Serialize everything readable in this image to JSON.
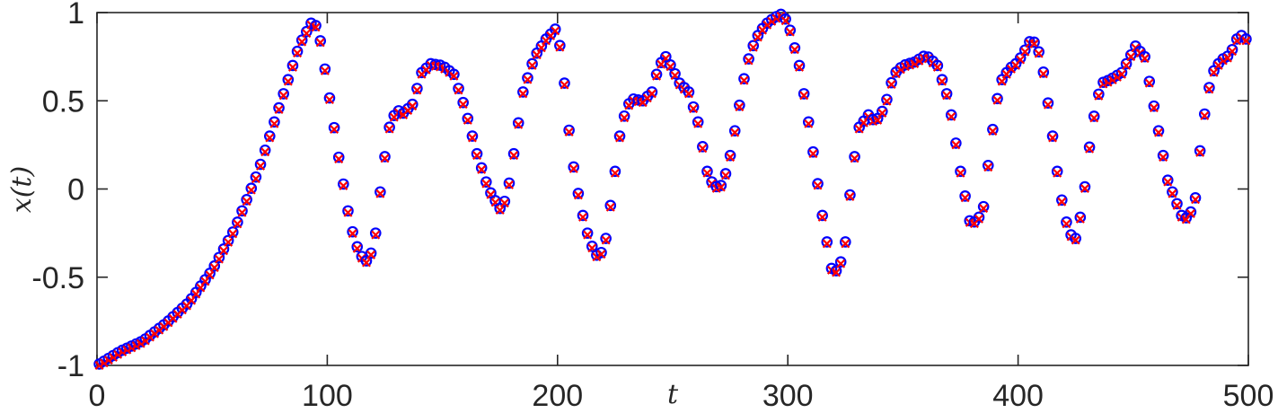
{
  "chart_data": {
    "type": "scatter",
    "title": "",
    "xlabel": "t",
    "ylabel": "x(t)",
    "xlim": [
      0,
      500
    ],
    "ylim": [
      -1,
      1
    ],
    "xticks": [
      0,
      100,
      200,
      300,
      400,
      500
    ],
    "xtick_labels": [
      "0",
      "100",
      "200",
      "300",
      "400",
      "500"
    ],
    "yticks": [
      -1,
      -0.5,
      0,
      0.5,
      1
    ],
    "ytick_labels": [
      "-1",
      "-0.5",
      "0",
      "0.5",
      "1"
    ],
    "grid": false,
    "legend": "none",
    "sample_step": 2,
    "series": [
      {
        "marker": "circle",
        "color": "#0000ff",
        "offset": 0
      },
      {
        "marker": "cross",
        "color": "#ff0000",
        "offset": -0.01
      }
    ],
    "curve_knots": {
      "t": [
        0,
        10,
        20,
        30,
        40,
        50,
        60,
        70,
        80,
        88,
        93,
        96,
        100,
        105,
        110,
        114,
        118,
        121,
        124,
        127,
        130,
        133,
        137,
        141,
        145,
        150,
        155,
        160,
        165,
        170,
        175,
        178,
        181,
        185,
        190,
        195,
        200,
        203,
        206,
        210,
        214,
        218,
        221,
        224,
        227,
        230,
        233,
        237,
        241,
        244,
        247,
        250,
        253,
        257,
        261,
        265,
        268,
        271,
        274,
        278,
        282,
        286,
        290,
        294,
        297,
        300,
        305,
        310,
        315,
        319,
        322,
        325,
        328,
        331,
        335,
        338,
        342,
        346,
        350,
        355,
        360,
        365,
        370,
        375,
        379,
        382,
        385,
        388,
        392,
        396,
        400,
        404,
        406,
        410,
        414,
        418,
        422,
        425,
        428,
        432,
        436,
        440,
        445,
        451,
        455,
        460,
        465,
        471,
        474,
        477,
        480,
        484,
        488,
        492,
        496,
        500
      ],
      "x": [
        -1.0,
        -0.92,
        -0.86,
        -0.76,
        -0.64,
        -0.46,
        -0.22,
        0.1,
        0.5,
        0.82,
        0.94,
        0.92,
        0.6,
        0.18,
        -0.2,
        -0.37,
        -0.42,
        -0.25,
        0.1,
        0.35,
        0.45,
        0.43,
        0.48,
        0.66,
        0.71,
        0.7,
        0.65,
        0.45,
        0.2,
        0.0,
        -0.11,
        -0.05,
        0.2,
        0.55,
        0.75,
        0.85,
        0.92,
        0.6,
        0.2,
        -0.1,
        -0.3,
        -0.4,
        -0.28,
        0.0,
        0.3,
        0.47,
        0.51,
        0.5,
        0.55,
        0.7,
        0.75,
        0.68,
        0.6,
        0.55,
        0.38,
        0.1,
        0.01,
        0.02,
        0.12,
        0.4,
        0.7,
        0.85,
        0.93,
        0.97,
        0.99,
        0.95,
        0.7,
        0.3,
        -0.15,
        -0.45,
        -0.47,
        -0.3,
        0.1,
        0.35,
        0.42,
        0.38,
        0.46,
        0.65,
        0.7,
        0.72,
        0.76,
        0.7,
        0.5,
        0.1,
        -0.18,
        -0.19,
        -0.1,
        0.25,
        0.6,
        0.68,
        0.72,
        0.81,
        0.86,
        0.75,
        0.4,
        0.0,
        -0.25,
        -0.28,
        -0.1,
        0.35,
        0.6,
        0.62,
        0.66,
        0.81,
        0.75,
        0.4,
        0.05,
        -0.15,
        -0.17,
        -0.05,
        0.35,
        0.65,
        0.73,
        0.76,
        0.88,
        0.84
      ]
    }
  }
}
